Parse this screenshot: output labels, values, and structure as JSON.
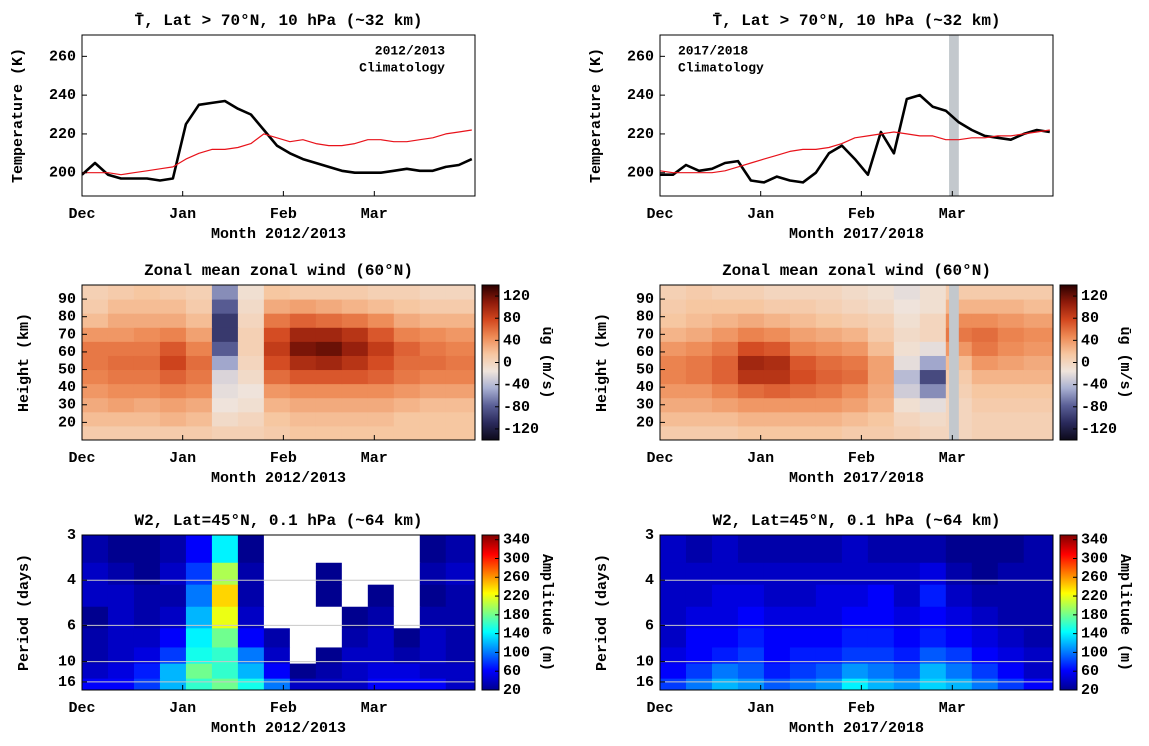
{
  "chart_data": [
    {
      "type": "line",
      "title": "T̄, Lat > 70°N, 10 hPa (~32 km)",
      "xlabel": "Month 2012/2013",
      "ylabel": "Temperature (K)",
      "x": [
        0,
        4,
        8,
        12,
        16,
        20,
        24,
        28,
        32,
        36,
        40,
        44,
        48,
        52,
        56,
        60,
        64,
        68,
        72,
        76,
        80,
        84,
        88,
        92,
        96,
        100,
        104,
        108,
        112,
        116,
        120
      ],
      "series": [
        {
          "name": "2012/2013",
          "color": "#000000",
          "line_width": 2.6,
          "values": [
            199,
            205,
            199,
            197,
            197,
            197,
            196,
            197,
            225,
            235,
            236,
            237,
            233,
            230,
            222,
            214,
            210,
            207,
            205,
            203,
            201,
            200,
            200,
            200,
            201,
            202,
            201,
            201,
            203,
            204,
            207
          ]
        },
        {
          "name": "Climatology",
          "color": "#e8121a",
          "line_width": 1.2,
          "values": [
            200,
            200,
            200,
            199,
            200,
            201,
            202,
            203,
            207,
            210,
            212,
            212,
            213,
            215,
            220,
            218,
            216,
            217,
            215,
            214,
            214,
            215,
            217,
            217,
            216,
            216,
            217,
            218,
            220,
            221,
            222
          ]
        }
      ],
      "xlim": [
        0,
        121
      ],
      "xticks": [
        {
          "value": 0,
          "label": "Dec"
        },
        {
          "value": 31,
          "label": "Jan"
        },
        {
          "value": 62,
          "label": "Feb"
        },
        {
          "value": 90,
          "label": "Mar"
        }
      ],
      "ylim": [
        188,
        271
      ],
      "yticks": [
        200,
        220,
        240,
        260
      ],
      "legend": "upper right"
    },
    {
      "type": "line",
      "title": "T̄, Lat > 70°N, 10 hPa (~32 km)",
      "xlabel": "Month 2017/2018",
      "ylabel": "Temperature (K)",
      "x": [
        0,
        4,
        8,
        12,
        16,
        20,
        24,
        28,
        32,
        36,
        40,
        44,
        48,
        52,
        56,
        60,
        64,
        68,
        72,
        76,
        80,
        84,
        88,
        92,
        96,
        100,
        104,
        108,
        112,
        116,
        120
      ],
      "series": [
        {
          "name": "2017/2018",
          "color": "#000000",
          "line_width": 2.6,
          "values": [
            199,
            199,
            204,
            201,
            202,
            205,
            206,
            196,
            195,
            198,
            196,
            195,
            200,
            210,
            214,
            207,
            199,
            221,
            210,
            238,
            240,
            234,
            232,
            226,
            222,
            219,
            218,
            217,
            220,
            222,
            221
          ]
        },
        {
          "name": "Climatology",
          "color": "#e8121a",
          "line_width": 1.2,
          "values": [
            201,
            200,
            200,
            200,
            200,
            201,
            203,
            205,
            207,
            209,
            211,
            212,
            212,
            213,
            215,
            218,
            219,
            220,
            221,
            220,
            219,
            219,
            217,
            217,
            218,
            218,
            219,
            219,
            220,
            221,
            222
          ]
        }
      ],
      "xlim": [
        0,
        121
      ],
      "xticks": [
        {
          "value": 0,
          "label": "Dec"
        },
        {
          "value": 31,
          "label": "Jan"
        },
        {
          "value": 62,
          "label": "Feb"
        },
        {
          "value": 90,
          "label": "Mar"
        }
      ],
      "ylim": [
        188,
        271
      ],
      "yticks": [
        200,
        220,
        240,
        260
      ],
      "legend": "upper left",
      "band": [
        89,
        92
      ],
      "band_color": "#c3c8cd"
    },
    {
      "type": "heatmap",
      "title": "Zonal mean zonal wind (60°N)",
      "xlabel": "Month 2012/2013",
      "ylabel": "Height (km)",
      "colorbar_label": "ūg (m/s)",
      "x": [
        4,
        12,
        20,
        28,
        36,
        44,
        52,
        60,
        68,
        76,
        84,
        92,
        100,
        108,
        116
      ],
      "y": [
        14,
        22,
        30,
        38,
        46,
        54,
        62,
        70,
        78,
        86,
        94
      ],
      "z": [
        [
          10,
          10,
          10,
          10,
          10,
          5,
          5,
          10,
          15,
          15,
          15,
          15,
          15,
          15,
          15
        ],
        [
          20,
          20,
          20,
          25,
          20,
          -5,
          0,
          15,
          20,
          20,
          20,
          20,
          15,
          15,
          15
        ],
        [
          30,
          35,
          30,
          35,
          30,
          -15,
          -10,
          25,
          30,
          30,
          30,
          30,
          25,
          20,
          20
        ],
        [
          40,
          45,
          45,
          50,
          45,
          -20,
          -15,
          40,
          45,
          45,
          45,
          45,
          40,
          35,
          35
        ],
        [
          50,
          55,
          55,
          65,
          55,
          -25,
          -5,
          60,
          70,
          70,
          70,
          65,
          55,
          50,
          50
        ],
        [
          55,
          60,
          60,
          80,
          60,
          -50,
          0,
          75,
          95,
          100,
          90,
          75,
          60,
          60,
          55
        ],
        [
          55,
          55,
          55,
          70,
          50,
          -80,
          5,
          85,
          115,
          120,
          105,
          85,
          65,
          55,
          50
        ],
        [
          40,
          40,
          45,
          50,
          35,
          -100,
          5,
          75,
          100,
          100,
          90,
          70,
          50,
          45,
          40
        ],
        [
          20,
          30,
          30,
          30,
          20,
          -100,
          0,
          55,
          65,
          60,
          55,
          45,
          30,
          25,
          25
        ],
        [
          10,
          20,
          20,
          20,
          10,
          -80,
          -5,
          30,
          35,
          30,
          25,
          20,
          15,
          10,
          10
        ],
        [
          5,
          10,
          15,
          10,
          5,
          -60,
          -10,
          15,
          10,
          10,
          10,
          5,
          5,
          0,
          0
        ]
      ],
      "xlim": [
        0,
        121
      ],
      "xticks": [
        {
          "value": 0,
          "label": "Dec"
        },
        {
          "value": 31,
          "label": "Jan"
        },
        {
          "value": 62,
          "label": "Feb"
        },
        {
          "value": 90,
          "label": "Mar"
        }
      ],
      "ylim": [
        10,
        98
      ],
      "yticks": [
        20,
        30,
        40,
        50,
        60,
        70,
        80,
        90
      ],
      "zlim": [
        -140,
        140
      ],
      "zticks": [
        -120,
        -80,
        -40,
        0,
        40,
        80,
        120
      ],
      "colormap": [
        "#0d0a1a",
        "#2a2a5c",
        "#5a5f96",
        "#a9b0d2",
        "#efe4dc",
        "#f6c6a0",
        "#ee8a55",
        "#d2461e",
        "#8e1a0a",
        "#2a0000"
      ]
    },
    {
      "type": "heatmap",
      "title": "Zonal mean zonal wind (60°N)",
      "xlabel": "Month 2017/2018",
      "ylabel": "Height (km)",
      "colorbar_label": "ūg (m/s)",
      "x": [
        4,
        12,
        20,
        28,
        36,
        44,
        52,
        60,
        68,
        76,
        84,
        92,
        100,
        108,
        116
      ],
      "y": [
        14,
        22,
        30,
        38,
        46,
        54,
        62,
        70,
        78,
        86,
        94
      ],
      "z": [
        [
          10,
          10,
          10,
          15,
          15,
          15,
          15,
          10,
          10,
          5,
          0,
          0,
          5,
          5,
          5
        ],
        [
          20,
          20,
          20,
          25,
          25,
          25,
          25,
          20,
          15,
          0,
          -5,
          0,
          5,
          5,
          5
        ],
        [
          30,
          30,
          35,
          40,
          40,
          40,
          40,
          35,
          25,
          -10,
          -20,
          0,
          10,
          10,
          10
        ],
        [
          40,
          40,
          50,
          60,
          65,
          60,
          55,
          45,
          30,
          -30,
          -60,
          5,
          15,
          15,
          15
        ],
        [
          50,
          55,
          65,
          90,
          90,
          75,
          65,
          60,
          35,
          -40,
          -90,
          10,
          25,
          25,
          25
        ],
        [
          50,
          55,
          65,
          100,
          95,
          70,
          60,
          55,
          35,
          -20,
          -50,
          20,
          40,
          35,
          30
        ],
        [
          40,
          45,
          55,
          75,
          70,
          50,
          45,
          40,
          20,
          -10,
          -20,
          40,
          55,
          45,
          40
        ],
        [
          25,
          30,
          40,
          50,
          45,
          35,
          30,
          25,
          10,
          -5,
          0,
          55,
          60,
          50,
          45
        ],
        [
          15,
          20,
          25,
          30,
          25,
          20,
          15,
          10,
          5,
          -10,
          0,
          45,
          45,
          40,
          35
        ],
        [
          10,
          15,
          15,
          15,
          10,
          10,
          5,
          0,
          -5,
          -15,
          -10,
          25,
          25,
          25,
          20
        ],
        [
          5,
          10,
          5,
          5,
          0,
          0,
          0,
          -5,
          -10,
          -20,
          -10,
          10,
          10,
          10,
          10
        ]
      ],
      "xlim": [
        0,
        121
      ],
      "xticks": [
        {
          "value": 0,
          "label": "Dec"
        },
        {
          "value": 31,
          "label": "Jan"
        },
        {
          "value": 62,
          "label": "Feb"
        },
        {
          "value": 90,
          "label": "Mar"
        }
      ],
      "ylim": [
        10,
        98
      ],
      "yticks": [
        20,
        30,
        40,
        50,
        60,
        70,
        80,
        90
      ],
      "zlim": [
        -140,
        140
      ],
      "zticks": [
        -120,
        -80,
        -40,
        0,
        40,
        80,
        120
      ],
      "colormap": [
        "#0d0a1a",
        "#2a2a5c",
        "#5a5f96",
        "#a9b0d2",
        "#efe4dc",
        "#f6c6a0",
        "#ee8a55",
        "#d2461e",
        "#8e1a0a",
        "#2a0000"
      ],
      "band": [
        89,
        92
      ],
      "band_color": "#c3c8cd"
    },
    {
      "type": "heatmap",
      "title": "W2, Lat=45°N, 0.1 hPa (~64 km)",
      "xlabel": "Month 2012/2013",
      "ylabel": "Period (days)",
      "colorbar_label": "Amplitude (m)",
      "x": [
        4,
        12,
        20,
        28,
        36,
        44,
        52,
        60,
        68,
        76,
        84,
        92,
        100,
        108,
        116
      ],
      "y": [
        18,
        12,
        9,
        7,
        5.5,
        4.5,
        3.8,
        3.3
      ],
      "z": [
        [
          60,
          60,
          80,
          120,
          160,
          180,
          150,
          100,
          40,
          40,
          40,
          60,
          60,
          60,
          40
        ],
        [
          40,
          50,
          70,
          120,
          180,
          160,
          120,
          60,
          20,
          30,
          40,
          50,
          50,
          40,
          40
        ],
        [
          30,
          40,
          50,
          80,
          150,
          160,
          100,
          40,
          10,
          20,
          40,
          40,
          30,
          40,
          30
        ],
        [
          30,
          40,
          40,
          60,
          140,
          180,
          60,
          30,
          10,
          10,
          30,
          40,
          20,
          40,
          30
        ],
        [
          20,
          40,
          30,
          40,
          120,
          220,
          40,
          10,
          10,
          10,
          20,
          30,
          10,
          30,
          30
        ],
        [
          40,
          40,
          30,
          30,
          100,
          240,
          30,
          10,
          10,
          20,
          10,
          20,
          10,
          20,
          30
        ],
        [
          40,
          30,
          20,
          40,
          80,
          200,
          30,
          10,
          10,
          20,
          10,
          10,
          10,
          30,
          40
        ],
        [
          30,
          20,
          20,
          30,
          60,
          140,
          20,
          10,
          10,
          10,
          10,
          10,
          10,
          20,
          30
        ]
      ],
      "xlim": [
        0,
        121
      ],
      "xticks": [
        {
          "value": 0,
          "label": "Dec"
        },
        {
          "value": 31,
          "label": "Jan"
        },
        {
          "value": 62,
          "label": "Feb"
        },
        {
          "value": 90,
          "label": "Mar"
        }
      ],
      "ylim": [
        21,
        3
      ],
      "yscale": "reciprocal",
      "yticks": [
        3,
        4,
        6,
        10,
        16
      ],
      "grid": true,
      "zlim": [
        20,
        350
      ],
      "zticks": [
        20,
        60,
        100,
        140,
        180,
        220,
        260,
        300,
        340
      ],
      "colormap": [
        "#00008f",
        "#0000ff",
        "#0080ff",
        "#00ffff",
        "#80ff80",
        "#ffff00",
        "#ff8000",
        "#ff0000",
        "#800000"
      ]
    },
    {
      "type": "heatmap",
      "title": "W2, Lat=45°N, 0.1 hPa (~64 km)",
      "xlabel": "Month 2017/2018",
      "ylabel": "Period (days)",
      "colorbar_label": "Amplitude (m)",
      "x": [
        4,
        12,
        20,
        28,
        36,
        44,
        52,
        60,
        68,
        76,
        84,
        92,
        100,
        108,
        116
      ],
      "y": [
        18,
        12,
        9,
        7,
        5.5,
        4.5,
        3.8,
        3.3
      ],
      "z": [
        [
          80,
          100,
          120,
          110,
          90,
          100,
          110,
          140,
          120,
          110,
          130,
          120,
          100,
          80,
          60
        ],
        [
          60,
          80,
          100,
          90,
          70,
          80,
          90,
          110,
          100,
          90,
          120,
          100,
          80,
          60,
          40
        ],
        [
          50,
          60,
          70,
          80,
          60,
          70,
          70,
          80,
          80,
          70,
          90,
          80,
          60,
          50,
          40
        ],
        [
          40,
          60,
          60,
          70,
          60,
          60,
          60,
          70,
          70,
          60,
          70,
          60,
          50,
          40,
          30
        ],
        [
          40,
          50,
          50,
          60,
          50,
          50,
          50,
          60,
          60,
          50,
          60,
          50,
          40,
          30,
          30
        ],
        [
          40,
          40,
          50,
          50,
          40,
          40,
          50,
          50,
          60,
          40,
          70,
          40,
          30,
          30,
          30
        ],
        [
          40,
          40,
          40,
          40,
          40,
          40,
          40,
          40,
          40,
          40,
          50,
          30,
          20,
          30,
          30
        ],
        [
          40,
          30,
          40,
          30,
          30,
          30,
          30,
          40,
          30,
          30,
          30,
          20,
          20,
          20,
          30
        ]
      ],
      "xlim": [
        0,
        121
      ],
      "xticks": [
        {
          "value": 0,
          "label": "Dec"
        },
        {
          "value": 31,
          "label": "Jan"
        },
        {
          "value": 62,
          "label": "Feb"
        },
        {
          "value": 90,
          "label": "Mar"
        }
      ],
      "ylim": [
        21,
        3
      ],
      "yscale": "reciprocal",
      "yticks": [
        3,
        4,
        6,
        10,
        16
      ],
      "grid": true,
      "zlim": [
        20,
        350
      ],
      "zticks": [
        20,
        60,
        100,
        140,
        180,
        220,
        260,
        300,
        340
      ],
      "colormap": [
        "#00008f",
        "#0000ff",
        "#0080ff",
        "#00ffff",
        "#80ff80",
        "#ffff00",
        "#ff8000",
        "#ff0000",
        "#800000"
      ]
    }
  ]
}
